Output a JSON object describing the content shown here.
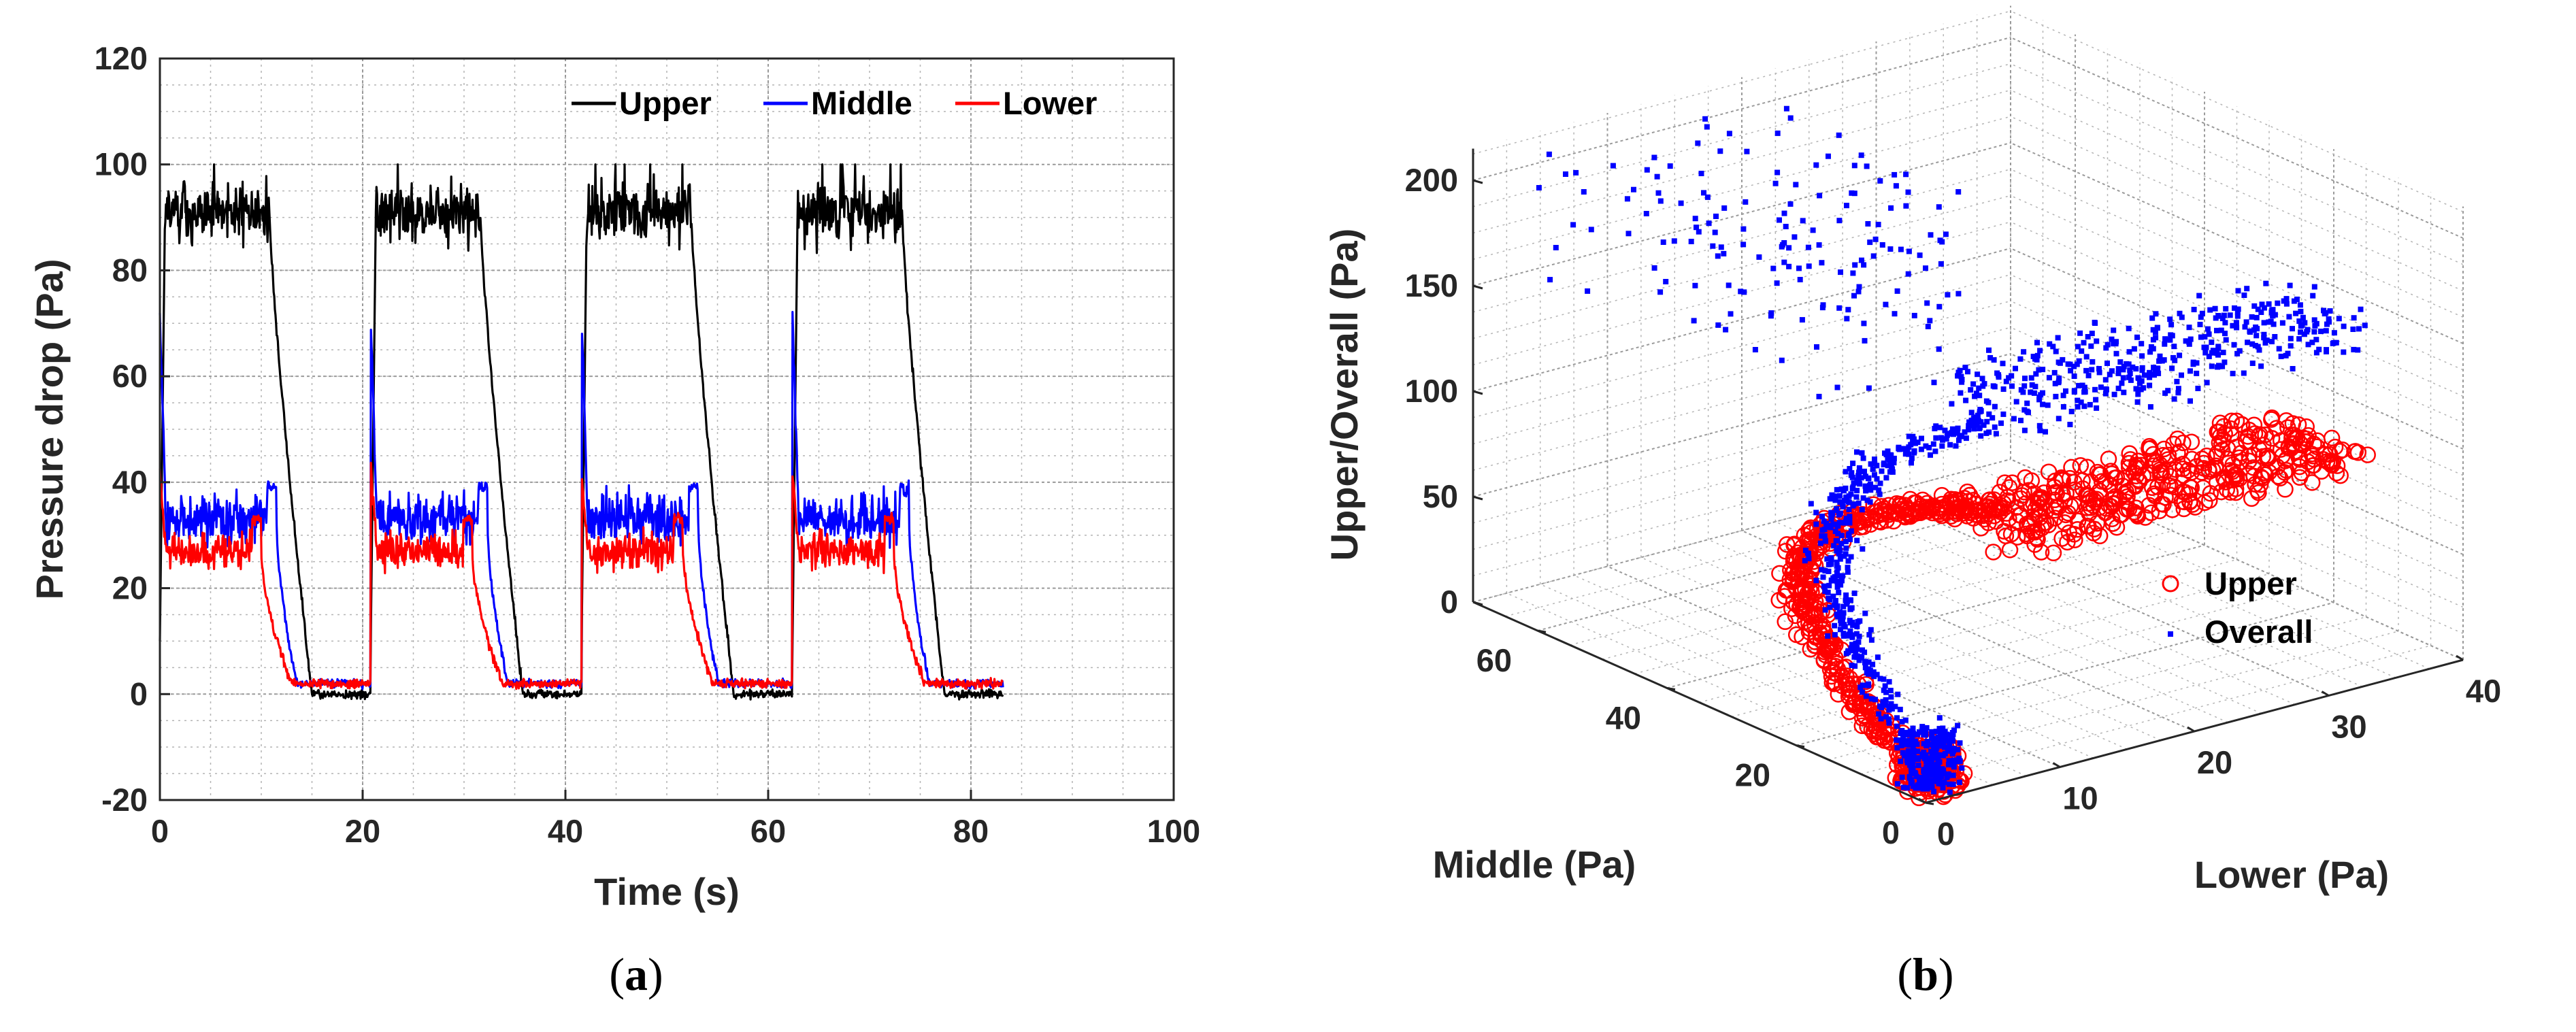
{
  "colors": {
    "upper": "#000000",
    "middle": "#0000ff",
    "lower": "#ff0000",
    "grid": "#b4b4b4",
    "axis": "#262626"
  },
  "captions": {
    "a": {
      "open": "(",
      "letter": "a",
      "close": ")"
    },
    "b": {
      "open": "(",
      "letter": "b",
      "close": ")"
    }
  },
  "chart_data": [
    {
      "id": "a",
      "type": "line",
      "title": "",
      "xlabel": "Time (s)",
      "ylabel": "Pressure drop (Pa)",
      "xlim": [
        0,
        100
      ],
      "ylim": [
        -20,
        120
      ],
      "xticks": [
        "0",
        "20",
        "40",
        "60",
        "80",
        "100"
      ],
      "yticks": [
        "-20",
        "0",
        "20",
        "40",
        "60",
        "80",
        "100",
        "120"
      ],
      "grid": true,
      "legend_position": "top-right",
      "cycle_period_s": 20.8,
      "cycles": 4,
      "end_time_s": 83.2,
      "series": [
        {
          "name": "Upper",
          "color": "#000000",
          "plateau": 91,
          "plateau_noise": 8,
          "peak": 100,
          "plateau_end_s": 10.8,
          "baseline_reached_s": 15.0,
          "baseline": 0
        },
        {
          "name": "Middle",
          "color": "#0000ff",
          "spike": 72,
          "plateau": 33,
          "plateau_noise": 7,
          "plateau_end_s": 11.5,
          "baseline_reached_s": 13.5,
          "baseline": 2
        },
        {
          "name": "Lower",
          "color": "#ff0000",
          "spike": 42,
          "plateau": 27,
          "plateau_noise": 5,
          "plateau_end_s": 10.0,
          "baseline_reached_s": 13.0,
          "baseline": 2
        }
      ]
    },
    {
      "id": "b",
      "type": "scatter",
      "projection": "3d",
      "title": "",
      "xlabel": "Lower (Pa)",
      "ylabel": "Middle (Pa)",
      "zlabel": "Upper/Overall (Pa)",
      "xlim": [
        0,
        40
      ],
      "ylim": [
        0,
        70
      ],
      "zlim": [
        0,
        200
      ],
      "xticks": [
        "0",
        "10",
        "20",
        "30",
        "40"
      ],
      "yticks": [
        "0",
        "20",
        "40",
        "60"
      ],
      "zticks": [
        "0",
        "50",
        "100",
        "150",
        "200"
      ],
      "grid": true,
      "legend_position": "right-middle",
      "series": [
        {
          "name": "Upper",
          "marker": "open-circle",
          "color": "#ff0000",
          "clusters": [
            {
              "lower": [
                0,
                3
              ],
              "middle": [
                0,
                5
              ],
              "upper": [
                0,
                20
              ],
              "shape": "base-column"
            },
            {
              "lower": [
                12,
                38
              ],
              "middle": [
                10,
                25
              ],
              "upper": [
                75,
                95
              ],
              "shape": "plateau-band"
            },
            {
              "lower": [
                0,
                15
              ],
              "middle": [
                5,
                60
              ],
              "upper": [
                20,
                90
              ],
              "shape": "arc"
            }
          ]
        },
        {
          "name": "Overall",
          "marker": "point",
          "color": "#0000ff",
          "clusters": [
            {
              "lower": [
                0,
                3
              ],
              "middle": [
                0,
                5
              ],
              "upper": [
                0,
                30
              ],
              "shape": "base-column"
            },
            {
              "lower": [
                12,
                38
              ],
              "middle": [
                10,
                25
              ],
              "upper": [
                130,
                160
              ],
              "shape": "plateau-band"
            },
            {
              "lower": [
                3,
                20
              ],
              "middle": [
                20,
                70
              ],
              "upper": [
                150,
                215
              ],
              "shape": "top-spread"
            },
            {
              "lower": [
                0,
                12
              ],
              "middle": [
                5,
                45
              ],
              "upper": [
                30,
                140
              ],
              "shape": "arc"
            }
          ]
        }
      ]
    }
  ]
}
